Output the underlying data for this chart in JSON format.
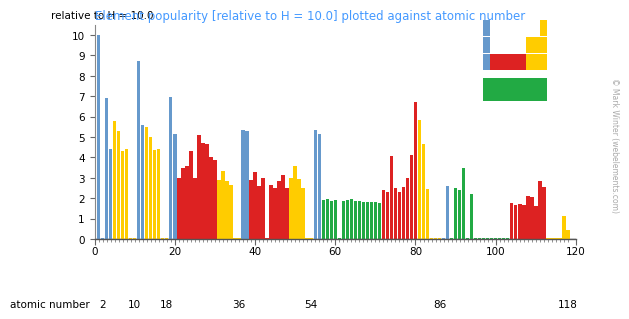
{
  "title": "Element popularity [relative to H = 10.0] plotted against atomic number",
  "title_color": "#4499ff",
  "ylabel_text": "relative to H = 10.0",
  "background": "#ffffff",
  "ylim": [
    0,
    10.5
  ],
  "xlim": [
    0,
    120
  ],
  "yticks": [
    0,
    1,
    2,
    3,
    4,
    5,
    6,
    7,
    8,
    9,
    10
  ],
  "xtick_major_auto": [
    0,
    20,
    40,
    60,
    80,
    100,
    120
  ],
  "xtick_named": [
    2,
    10,
    18,
    36,
    54,
    86,
    118
  ],
  "bar_width": 0.85,
  "watermark": "© Mark Winter (webelements.com)",
  "colors": {
    "s_block": "#6699cc",
    "p_block": "#ffcc00",
    "d_block": "#dd2222",
    "f_block": "#22aa44"
  },
  "popularity": [
    10.0,
    0.05,
    6.9,
    4.4,
    5.8,
    5.3,
    4.3,
    4.4,
    0.05,
    0.05,
    8.75,
    5.6,
    5.5,
    5.0,
    4.35,
    4.4,
    0.05,
    0.05,
    6.95,
    5.15,
    3.0,
    3.5,
    3.6,
    4.3,
    3.0,
    5.1,
    4.7,
    4.65,
    4.0,
    3.85,
    2.9,
    3.35,
    2.85,
    2.65,
    0.05,
    0.05,
    5.35,
    5.3,
    2.9,
    3.3,
    2.6,
    3.0,
    0.05,
    2.65,
    2.5,
    2.85,
    3.15,
    2.5,
    3.0,
    3.6,
    2.95,
    2.5,
    0.05,
    0.05,
    5.35,
    5.15,
    1.9,
    1.95,
    1.85,
    1.9,
    0.05,
    1.85,
    1.9,
    1.95,
    1.85,
    1.85,
    1.8,
    1.8,
    1.8,
    1.8,
    1.75,
    2.4,
    2.3,
    4.05,
    2.5,
    2.3,
    2.55,
    3.0,
    4.1,
    6.7,
    5.85,
    4.65,
    2.45,
    0.05,
    0.05,
    0.05,
    0.05,
    2.6,
    0.05,
    2.5,
    2.4,
    3.5,
    0.05,
    2.2,
    0.05,
    0.05,
    0.05,
    0.05,
    0.05,
    0.05,
    0.05,
    0.05,
    0.05,
    1.75,
    1.65,
    1.7,
    1.65,
    2.1,
    2.05,
    1.6,
    2.85,
    2.55,
    0.05,
    0.05,
    0.05,
    0.05,
    1.15,
    0.45
  ]
}
